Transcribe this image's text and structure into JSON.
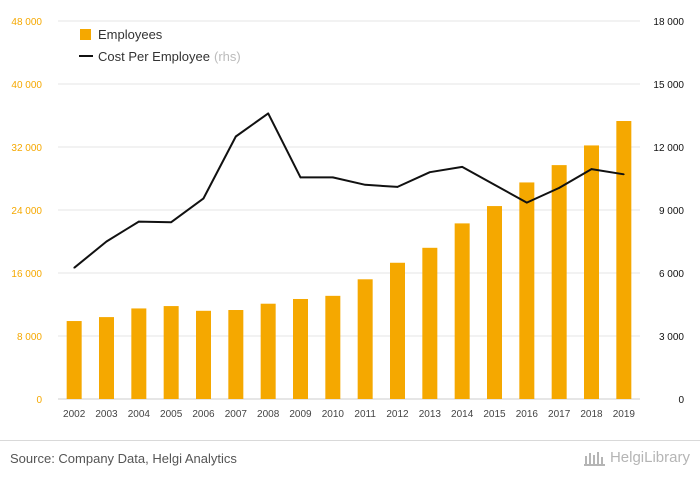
{
  "chart_data": {
    "type": "bar",
    "categories": [
      "2002",
      "2003",
      "2004",
      "2005",
      "2006",
      "2007",
      "2008",
      "2009",
      "2010",
      "2011",
      "2012",
      "2013",
      "2014",
      "2015",
      "2016",
      "2017",
      "2018",
      "2019"
    ],
    "series": [
      {
        "name": "Employees",
        "type": "bar",
        "axis": "left",
        "color": "#f5a800",
        "values": [
          9900,
          10400,
          11500,
          11800,
          11200,
          11300,
          12100,
          12700,
          13100,
          15200,
          17300,
          19200,
          22300,
          24500,
          27500,
          29700,
          32200,
          35300
        ]
      },
      {
        "name": "Cost Per Employee",
        "name_suffix": "(rhs)",
        "type": "line",
        "axis": "right",
        "color": "#111111",
        "values": [
          6250,
          7500,
          8450,
          8420,
          9550,
          12500,
          13600,
          10550,
          10550,
          10200,
          10100,
          10800,
          11050,
          10200,
          9350,
          10050,
          10950,
          10700
        ]
      }
    ],
    "y_left": {
      "min": 0,
      "max": 48000,
      "ticks": [
        "0",
        "8 000",
        "16 000",
        "24 000",
        "32 000",
        "40 000",
        "48 000"
      ],
      "tick_values": [
        0,
        8000,
        16000,
        24000,
        32000,
        40000,
        48000
      ],
      "color": "#f5a800"
    },
    "y_right": {
      "min": 0,
      "max": 18000,
      "ticks": [
        "0",
        "3 000",
        "6 000",
        "9 000",
        "12 000",
        "15 000",
        "18 000"
      ],
      "tick_values": [
        0,
        3000,
        6000,
        9000,
        12000,
        15000,
        18000
      ],
      "color": "#111111"
    },
    "grid": true,
    "legend_position": "top-left"
  },
  "footer": {
    "source": "Source: Company Data, Helgi Analytics",
    "logo_text": "HelgiLibrary"
  }
}
